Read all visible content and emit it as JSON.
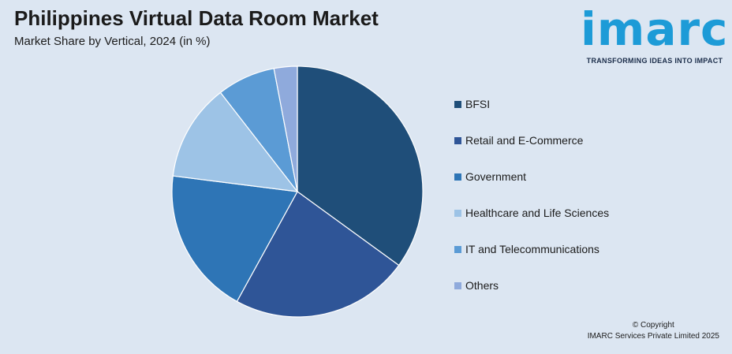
{
  "header": {
    "title": "Philippines Virtual Data Room Market",
    "subtitle": "Market Share by Vertical, 2024 (in %)"
  },
  "logo": {
    "name": "imarc",
    "tagline": "TRANSFORMING IDEAS INTO IMPACT"
  },
  "chart_data": {
    "type": "pie",
    "title": "Philippines Virtual Data Room Market",
    "subtitle": "Market Share by Vertical, 2024 (in %)",
    "legend_position": "right",
    "slices": [
      {
        "label": "BFSI",
        "value": 35,
        "color": "#1f4e79"
      },
      {
        "label": "Retail and E-Commerce",
        "value": 23,
        "color": "#2f5597"
      },
      {
        "label": "Government",
        "value": 19,
        "color": "#2e75b6"
      },
      {
        "label": "Healthcare and Life Sciences",
        "value": 12.5,
        "color": "#9dc3e6"
      },
      {
        "label": "IT and Telecommunications",
        "value": 7.5,
        "color": "#5b9bd5"
      },
      {
        "label": "Others",
        "value": 3,
        "color": "#8faadc"
      }
    ]
  },
  "footer": {
    "copyright_line1": "© Copyright",
    "copyright_line2": "IMARC Services Private Limited 2025"
  }
}
